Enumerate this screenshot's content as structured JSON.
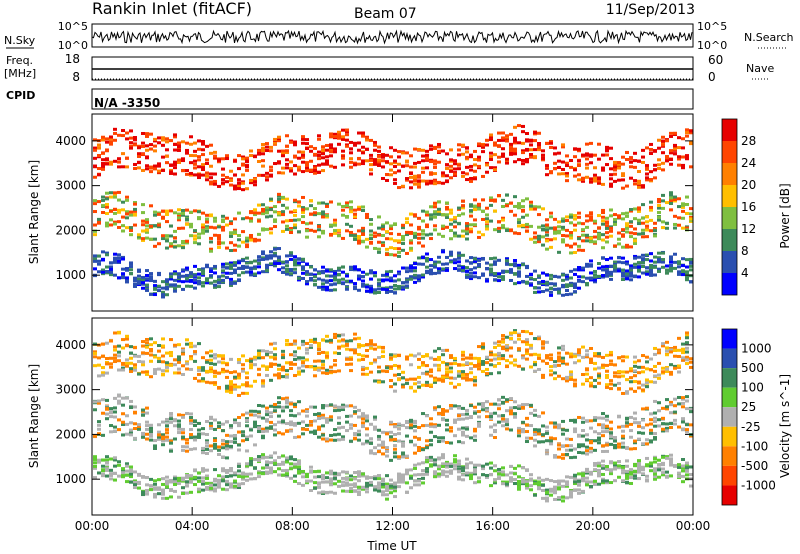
{
  "header": {
    "station": "Rankin Inlet (fitACF)",
    "beam": "Beam 07",
    "date": "11/Sep/2013"
  },
  "noise_panel": {
    "left_label": "N.Sky",
    "left_ticks": [
      "10^5",
      "10^0"
    ],
    "right_label": "N.Search",
    "right_ticks": [
      "10^5",
      "10^0"
    ]
  },
  "freq_panel": {
    "left_label_1": "Freq.",
    "left_label_2": "[MHz]",
    "left_ticks": [
      "18",
      "8"
    ],
    "right_label": "Nave",
    "right_ticks": [
      "60",
      "0"
    ]
  },
  "cpid_panel": {
    "label": "CPID",
    "value": "N/A -3350"
  },
  "colors": {
    "power": [
      "#0000ff",
      "#2a4fb0",
      "#3d8a5a",
      "#7fbf40",
      "#ffbf00",
      "#ff8000",
      "#ff4500",
      "#e60000"
    ],
    "velocity": [
      "#0000ff",
      "#2a4fb0",
      "#3d8a5a",
      "#60cc30",
      "#b0b0b0",
      "#ffbf00",
      "#ff8000",
      "#ff4500",
      "#e60000"
    ]
  },
  "chart_data": [
    {
      "type": "heatmap",
      "name": "power",
      "ylabel": "Slant Range [km]",
      "yticks": [
        "1000",
        "2000",
        "3000",
        "4000"
      ],
      "ylim": [
        200,
        4600
      ],
      "xticks": [
        "00:00",
        "04:00",
        "08:00",
        "12:00",
        "16:00",
        "20:00",
        "00:00"
      ],
      "xlim": [
        0,
        24
      ],
      "colorbar": {
        "label": "Power [dB]",
        "ticks": [
          "4",
          "8",
          "12",
          "16",
          "20",
          "24",
          "28"
        ]
      }
    },
    {
      "type": "heatmap",
      "name": "velocity",
      "ylabel": "Slant Range [km]",
      "yticks": [
        "1000",
        "2000",
        "3000",
        "4000"
      ],
      "ylim": [
        200,
        4600
      ],
      "xticks": [
        "00:00",
        "04:00",
        "08:00",
        "12:00",
        "16:00",
        "20:00",
        "00:00"
      ],
      "xlabel": "Time UT",
      "xlim": [
        0,
        24
      ],
      "colorbar": {
        "label": "Velocity [m s^-1]",
        "ticks": [
          "1000",
          "500",
          "100",
          "25",
          "-25",
          "-100",
          "-500",
          "-1000"
        ]
      }
    }
  ]
}
